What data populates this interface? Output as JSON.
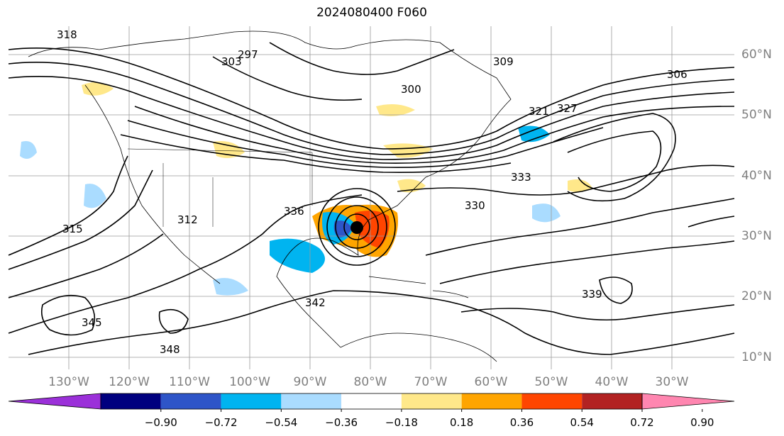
{
  "title": "2024080400 F060",
  "latitude_labels": [
    "60°N",
    "50°N",
    "40°N",
    "30°N",
    "20°N",
    "10°N"
  ],
  "longitude_labels": [
    "130°W",
    "120°W",
    "110°W",
    "100°W",
    "90°W",
    "80°W",
    "70°W",
    "60°W",
    "50°W",
    "40°W",
    "30°W"
  ],
  "colorbar": {
    "ticks": [
      "−0.90",
      "−0.72",
      "−0.54",
      "−0.36",
      "−0.18",
      "0.18",
      "0.36",
      "0.54",
      "0.72",
      "0.90"
    ],
    "colors": [
      "#9b30d9",
      "#00007f",
      "#2e55c8",
      "#00b4f0",
      "#aadcff",
      "#ffffff",
      "#ffe88a",
      "#ffa500",
      "#ff4500",
      "#b22222",
      "#ff86b0"
    ]
  },
  "contour_labels": [
    "318",
    "303",
    "297",
    "306",
    "300",
    "309",
    "321",
    "327",
    "330",
    "333",
    "336",
    "339",
    "342",
    "345",
    "348",
    "315",
    "312"
  ],
  "map": {
    "land_color": "#ffffff",
    "contour_color": "#000000",
    "storm_marker": "filled circle"
  }
}
